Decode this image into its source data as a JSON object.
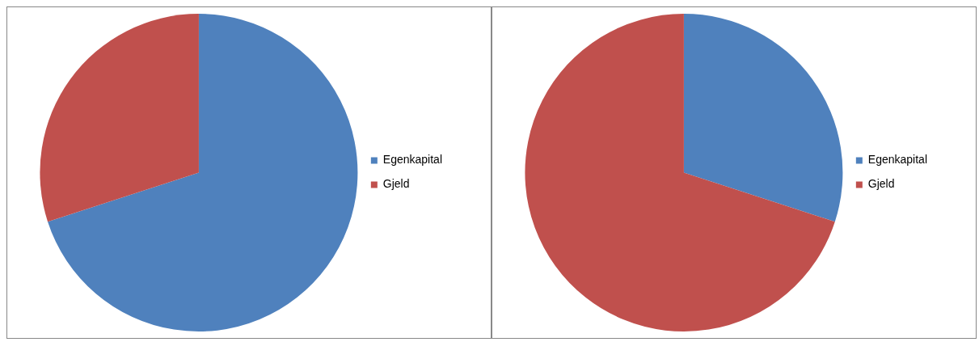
{
  "chart_data": [
    {
      "type": "pie",
      "categories": [
        "Egenkapital",
        "Gjeld"
      ],
      "values": [
        70,
        30
      ],
      "colors": [
        "#4f81bd",
        "#c0504d"
      ],
      "legend": "right"
    },
    {
      "type": "pie",
      "categories": [
        "Egenkapital",
        "Gjeld"
      ],
      "values": [
        30,
        70
      ],
      "colors": [
        "#4f81bd",
        "#c0504d"
      ],
      "legend": "right"
    }
  ]
}
